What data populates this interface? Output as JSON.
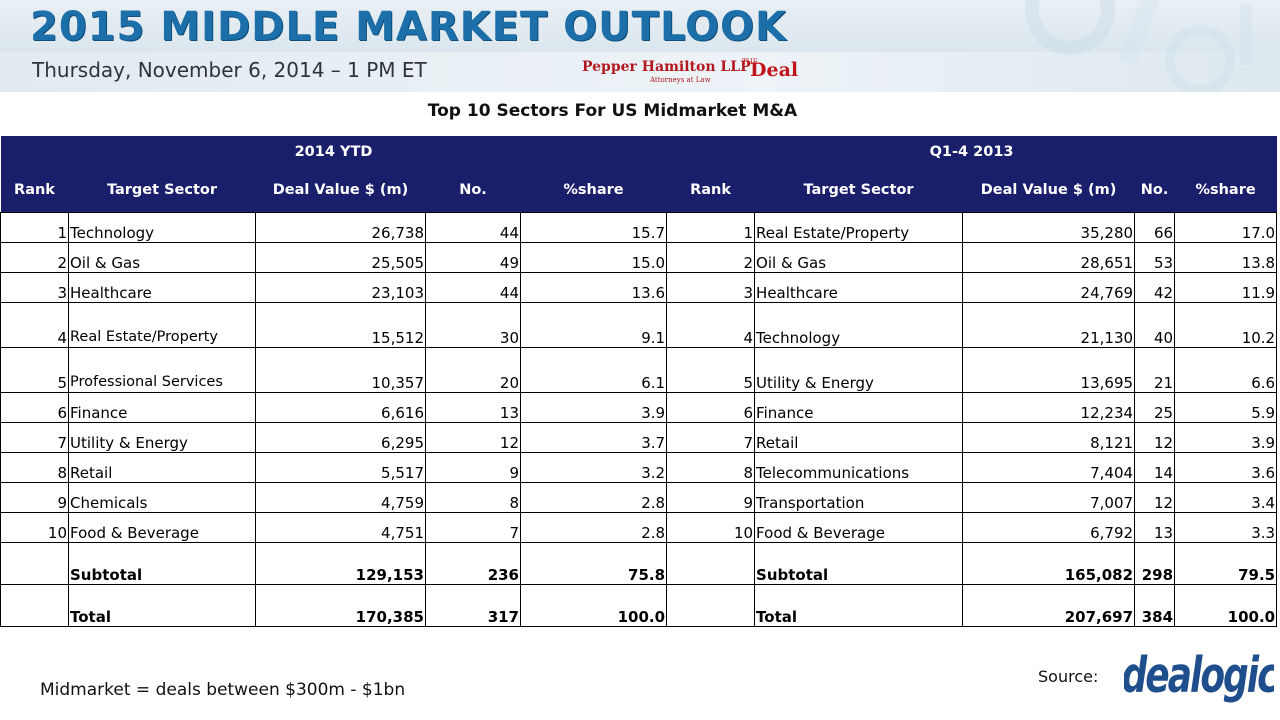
{
  "banner": {
    "title": "2015 MIDDLE MARKET OUTLOOK",
    "date": "Thursday, November 6, 2014 – 1 PM ET",
    "sponsor_1": "Pepper Hamilton LLP",
    "sponsor_1_sub": "Attorneys at Law",
    "sponsor_2": "Deal",
    "sponsor_2_prefix": "THE"
  },
  "heading": "Top 10 Sectors For US Midmarket M&A",
  "table": {
    "group_left": "2014 YTD",
    "group_right": "Q1-4 2013",
    "columns": [
      "Rank",
      "Target Sector",
      "Deal Value $ (m)",
      "No.",
      "%share",
      "Rank",
      "Target Sector",
      "Deal Value $ (m)",
      "No.",
      "%share"
    ],
    "rows": [
      [
        "1",
        "Technology",
        "26,738",
        "44",
        "15.7",
        "1",
        "Real Estate/Property",
        "35,280",
        "66",
        "17.0"
      ],
      [
        "2",
        "Oil & Gas",
        "25,505",
        "49",
        "15.0",
        "2",
        "Oil & Gas",
        "28,651",
        "53",
        "13.8"
      ],
      [
        "3",
        "Healthcare",
        "23,103",
        "44",
        "13.6",
        "3",
        "Healthcare",
        "24,769",
        "42",
        "11.9"
      ],
      [
        "4",
        "Real Estate/Property",
        "15,512",
        "30",
        "9.1",
        "4",
        "Technology",
        "21,130",
        "40",
        "10.2"
      ],
      [
        "5",
        "Professional Services",
        "10,357",
        "20",
        "6.1",
        "5",
        "Utility & Energy",
        "13,695",
        "21",
        "6.6"
      ],
      [
        "6",
        "Finance",
        "6,616",
        "13",
        "3.9",
        "6",
        "Finance",
        "12,234",
        "25",
        "5.9"
      ],
      [
        "7",
        "Utility & Energy",
        "6,295",
        "12",
        "3.7",
        "7",
        "Retail",
        "8,121",
        "12",
        "3.9"
      ],
      [
        "8",
        "Retail",
        "5,517",
        "9",
        "3.2",
        "8",
        "Telecommunications",
        "7,404",
        "14",
        "3.6"
      ],
      [
        "9",
        "Chemicals",
        "4,759",
        "8",
        "2.8",
        "9",
        "Transportation",
        "7,007",
        "12",
        "3.4"
      ],
      [
        "10",
        "Food & Beverage",
        "4,751",
        "7",
        "2.8",
        "10",
        "Food & Beverage",
        "6,792",
        "13",
        "3.3"
      ]
    ],
    "subtotal": [
      "",
      "Subtotal",
      "129,153",
      "236",
      "75.8",
      "",
      "Subtotal",
      "165,082",
      "298",
      "79.5"
    ],
    "total": [
      "",
      "Total",
      "170,385",
      "317",
      "100.0",
      "",
      "Total",
      "207,697",
      "384",
      "100.0"
    ]
  },
  "footnote": "Midmarket = deals between $300m - $1bn",
  "source_label": "Source:",
  "source_logo": "dealogic",
  "colors": {
    "header_bg": "#1a1f6c",
    "banner_title": "#1c6fa8",
    "sponsor_red": "#c2141b",
    "dealogic_blue": "#1e4e8c"
  }
}
